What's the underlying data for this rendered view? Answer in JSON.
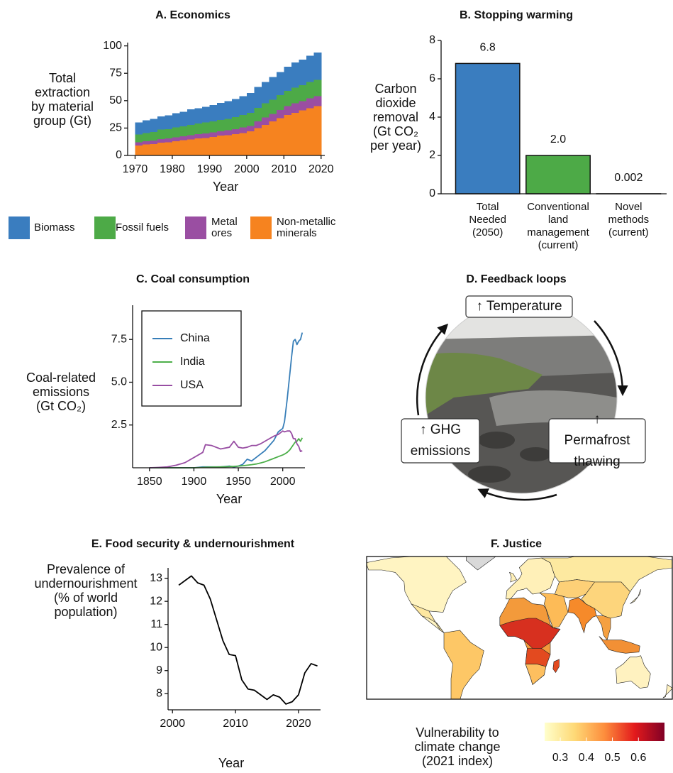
{
  "chart_data": [
    {
      "type": "area",
      "title": "A. Economics",
      "x_label": "Year",
      "y_label": "Total\nextraction\nby material\ngroup (Gt)",
      "stacked": true,
      "x": [
        1970,
        1972,
        1974,
        1976,
        1978,
        1980,
        1982,
        1984,
        1986,
        1988,
        1990,
        1992,
        1994,
        1996,
        1998,
        2000,
        2002,
        2004,
        2006,
        2008,
        2010,
        2012,
        2014,
        2016,
        2018
      ],
      "series": [
        {
          "name": "Biomass",
          "color": "#3a7dbf",
          "values": [
            11,
            11.5,
            12,
            12,
            12.5,
            13,
            13.5,
            14,
            14,
            14.5,
            15,
            15.5,
            16,
            16.5,
            17,
            18,
            19,
            19.5,
            20.5,
            21,
            22,
            23,
            23.5,
            24,
            25
          ]
        },
        {
          "name": "Fossil fuels",
          "color": "#4daa47",
          "values": [
            7,
            7.5,
            8,
            8.5,
            8.5,
            9,
            9,
            9.5,
            9.5,
            10,
            10,
            10.5,
            10.5,
            11,
            11.5,
            12,
            12.5,
            13,
            13,
            13.5,
            14,
            14.5,
            14.5,
            15,
            15
          ]
        },
        {
          "name": "Metal\nores",
          "color": "#9a4ea2",
          "values": [
            3,
            3,
            3,
            3.5,
            3.5,
            3.5,
            3.5,
            4,
            4,
            4,
            4,
            4,
            4.5,
            4.5,
            5,
            5,
            6,
            6.5,
            7,
            7.5,
            8,
            8.5,
            8.5,
            9,
            9
          ]
        },
        {
          "name": "Non-metallic\nminerals",
          "color": "#f6831f",
          "values": [
            9,
            10,
            10.5,
            11.5,
            12,
            13,
            14,
            14.5,
            15.5,
            16,
            17,
            18,
            18.5,
            19.5,
            20.5,
            22,
            25,
            28,
            31,
            34,
            37,
            39,
            41,
            43,
            45
          ]
        }
      ],
      "xlim": [
        1968,
        2021
      ],
      "xticks": [
        1970,
        1980,
        1990,
        2000,
        2010,
        2020
      ],
      "ylim": [
        0,
        103
      ],
      "yticks": [
        0,
        25,
        50,
        75,
        100
      ],
      "legend": "bottom"
    },
    {
      "type": "bar",
      "title": "B. Stopping warming",
      "y_label": "Carbon\ndioxide\nremoval\n(Gt CO₂\nper year)",
      "categories": [
        "Total\nNeeded\n(2050)",
        "Conventional\nland\nmanagement\n(current)",
        "Novel\nmethods\n(current)"
      ],
      "values": [
        6.8,
        2.0,
        0.002
      ],
      "value_labels": [
        "6.8",
        "2.0",
        "0.002"
      ],
      "colors": [
        "#3a7dbf",
        "#4daa47",
        "#4daa47"
      ],
      "ylim": [
        0,
        8
      ],
      "yticks": [
        0,
        2,
        4,
        6,
        8
      ]
    },
    {
      "type": "line",
      "title": "C. Coal consumption",
      "x_label": "Year",
      "y_label": "Coal-related\nemissions\n(Gt CO₂)",
      "x": [
        1850,
        1860,
        1870,
        1880,
        1890,
        1900,
        1910,
        1913,
        1920,
        1930,
        1940,
        1945,
        1950,
        1955,
        1960,
        1965,
        1970,
        1975,
        1980,
        1985,
        1990,
        1995,
        2000,
        2002,
        2005,
        2008,
        2010,
        2012,
        2014,
        2016,
        2018,
        2020,
        2022
      ],
      "series": [
        {
          "name": "China",
          "color": "#377eb8",
          "values": [
            0,
            0,
            0,
            0,
            0,
            0,
            0.05,
            0.05,
            0.05,
            0.05,
            0.1,
            0.05,
            0.1,
            0.2,
            0.5,
            0.4,
            0.6,
            0.8,
            1.0,
            1.3,
            1.6,
            2.1,
            2.3,
            2.7,
            4.0,
            5.5,
            6.5,
            7.4,
            7.5,
            7.2,
            7.4,
            7.5,
            7.9
          ]
        },
        {
          "name": "India",
          "color": "#4daf4a",
          "values": [
            0,
            0,
            0,
            0,
            0,
            0,
            0.02,
            0.03,
            0.04,
            0.05,
            0.07,
            0.08,
            0.1,
            0.12,
            0.15,
            0.18,
            0.22,
            0.28,
            0.35,
            0.45,
            0.55,
            0.65,
            0.75,
            0.8,
            0.9,
            1.05,
            1.2,
            1.35,
            1.5,
            1.55,
            1.7,
            1.55,
            1.75
          ]
        },
        {
          "name": "USA",
          "color": "#984ea3",
          "values": [
            0,
            0.02,
            0.05,
            0.15,
            0.3,
            0.6,
            0.9,
            1.35,
            1.3,
            1.1,
            1.2,
            1.55,
            1.2,
            1.15,
            1.2,
            1.3,
            1.3,
            1.4,
            1.55,
            1.7,
            1.85,
            1.95,
            2.15,
            2.1,
            2.15,
            2.15,
            2.0,
            1.7,
            1.7,
            1.4,
            1.25,
            0.95,
            1.0
          ]
        }
      ],
      "xlim": [
        1831,
        2025
      ],
      "xticks": [
        1850,
        1900,
        1950,
        2000
      ],
      "ylim": [
        0,
        9.5
      ],
      "yticks": [
        2.5,
        {
          "value": 5,
          "label": "5.0"
        },
        7.5
      ],
      "legend": "top-left"
    },
    {
      "type": "diagram",
      "title": "D. Feedback loops",
      "nodes": [
        {
          "label": "↑ Temperature"
        },
        {
          "label": "↑ Permafrost\nthawing"
        },
        {
          "label": "↑ GHG\nemissions"
        }
      ]
    },
    {
      "type": "line",
      "title": "E. Food security & undernourishment",
      "x_label": "Year",
      "y_label": "Prevalence of\nundernourishment\n(% of world\npopulation)",
      "x": [
        2001,
        2002,
        2003,
        2004,
        2005,
        2006,
        2007,
        2008,
        2009,
        2010,
        2011,
        2012,
        2013,
        2014,
        2015,
        2016,
        2017,
        2018,
        2019,
        2020,
        2021,
        2022,
        2023
      ],
      "values": [
        12.7,
        12.9,
        13.1,
        12.8,
        12.7,
        12.1,
        11.2,
        10.3,
        9.7,
        9.65,
        8.6,
        8.2,
        8.15,
        7.95,
        7.75,
        7.95,
        7.85,
        7.55,
        7.65,
        7.95,
        8.9,
        9.3,
        9.2
      ],
      "color": "#000000",
      "xlim": [
        1999.3,
        2023.5
      ],
      "xticks": [
        2000,
        2010,
        2020
      ],
      "ylim": [
        7.3,
        13.45
      ],
      "yticks": [
        8,
        9,
        10,
        11,
        12,
        13
      ]
    },
    {
      "type": "map",
      "title": "F. Justice",
      "colorbar_label": "Vulnerability to\nclimate change\n(2021 index)",
      "colors": [
        "#ffffcc",
        "#fed976",
        "#fd8d3c",
        "#e31a1c",
        "#800026"
      ],
      "clim": [
        0.24,
        0.7
      ],
      "cticks": [
        0.3,
        0.4,
        0.5,
        0.6
      ]
    }
  ]
}
